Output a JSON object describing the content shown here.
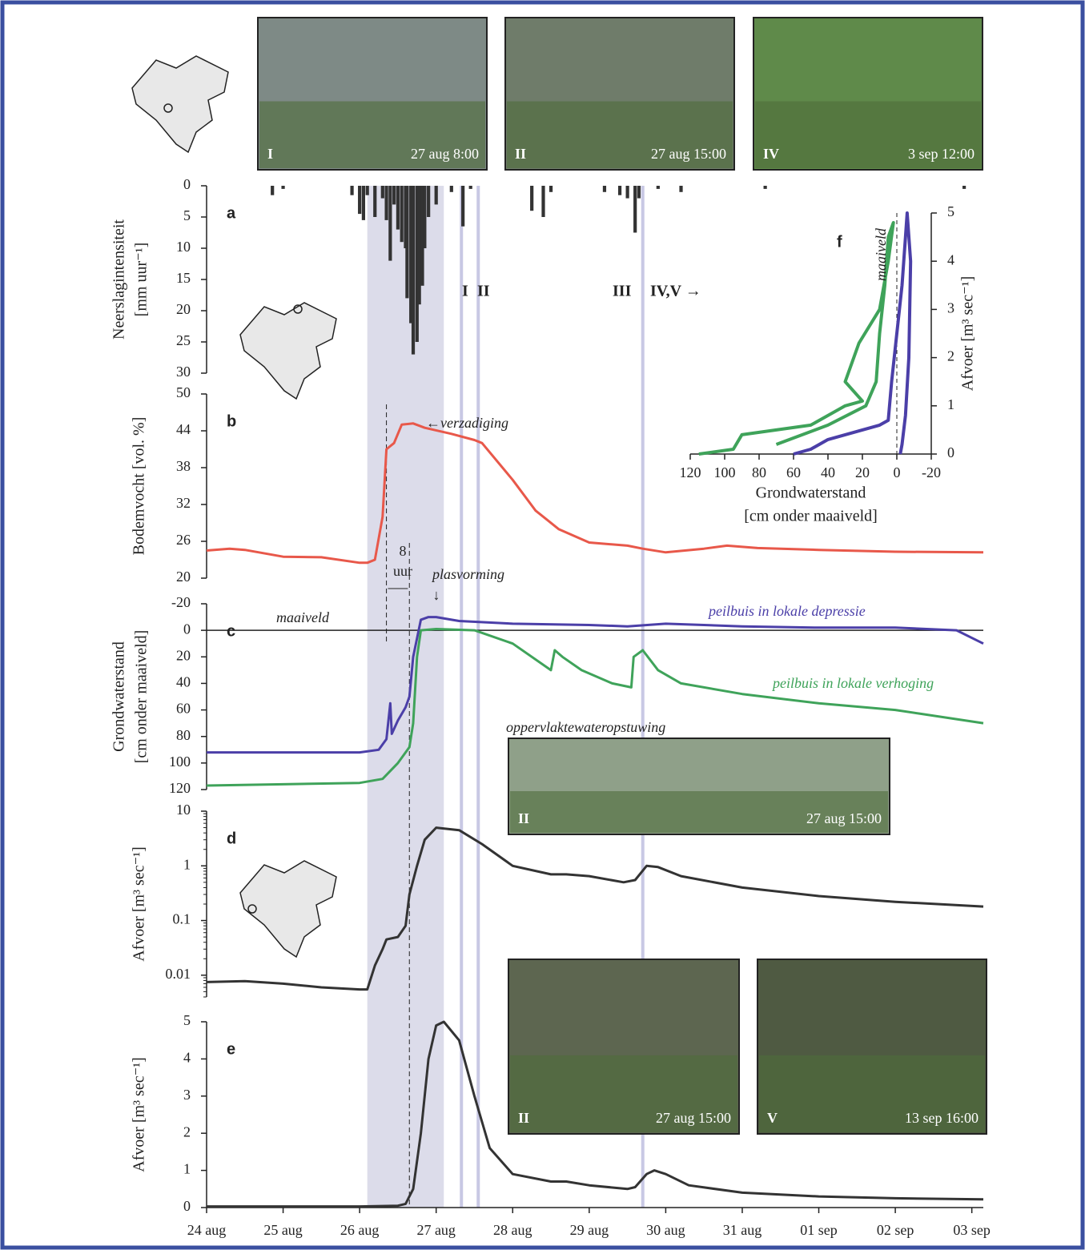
{
  "chart_data": [
    {
      "type": "bar",
      "label": "a",
      "y_label": "Neerslagintensiteit",
      "y_unit": "[mm uur⁻¹]",
      "color": "#333",
      "x": [
        0.86,
        1.0,
        1.9,
        2.0,
        2.05,
        2.1,
        2.2,
        2.3,
        2.35,
        2.4,
        2.45,
        2.5,
        2.55,
        2.6,
        2.62,
        2.67,
        2.7,
        2.75,
        2.78,
        2.82,
        2.85,
        2.9,
        3.0,
        3.2,
        3.35,
        3.45,
        4.25,
        4.4,
        4.5,
        5.2,
        5.4,
        5.5,
        5.6,
        5.65,
        5.9,
        6.2,
        7.3,
        9.9
      ],
      "values": [
        1.5,
        0.5,
        1.5,
        4.5,
        5.5,
        1.5,
        5,
        2,
        5.5,
        12,
        3,
        7,
        9,
        10,
        18,
        22,
        27,
        25,
        19,
        16,
        10,
        5,
        3,
        1,
        6.5,
        0.5,
        4,
        5,
        1,
        1,
        1.5,
        2,
        7.5,
        2,
        0.5,
        1,
        0.5,
        0.5
      ],
      "xlim": [
        0,
        10.15
      ],
      "ylim": [
        0,
        30
      ],
      "y_inverted": true,
      "yticks": [
        0,
        5,
        10,
        15,
        20,
        25,
        30
      ],
      "annotations": [
        "I",
        "II",
        "III",
        "IV,V →"
      ]
    },
    {
      "type": "line",
      "label": "b",
      "y_label": "Bodemvocht [vol. %]",
      "series": [
        {
          "color": "#e8584a",
          "x": [
            0,
            0.3,
            0.5,
            1,
            1.5,
            2,
            2.1,
            2.2,
            2.3,
            2.35,
            2.45,
            2.55,
            2.7,
            2.85,
            3.2,
            3.5,
            3.6,
            4,
            4.3,
            4.45,
            4.6,
            5,
            5.5,
            5.7,
            6,
            6.5,
            6.8,
            7.2,
            8,
            9,
            10.15
          ],
          "values": [
            24.5,
            24.8,
            24.6,
            23.5,
            23.4,
            22.5,
            22.5,
            23,
            30,
            41,
            42,
            45,
            45.2,
            44.5,
            43.5,
            42.5,
            42,
            36,
            31,
            29.5,
            28,
            25.8,
            25.3,
            24.8,
            24.2,
            24.8,
            25.3,
            24.9,
            24.6,
            24.3,
            24.2
          ]
        }
      ],
      "xlim": [
        0,
        10.15
      ],
      "ylim": [
        20,
        50
      ],
      "yticks": [
        20,
        26,
        32,
        38,
        44,
        50
      ],
      "annotations": [
        "←verzadiging"
      ]
    },
    {
      "type": "line",
      "label": "c",
      "y_label": "Grondwaterstand",
      "y_unit": "[cm onder maaiveld]",
      "series": [
        {
          "name": "peilbuis in lokale depressie",
          "color": "#4b3fa8",
          "x": [
            0,
            1,
            2,
            2.25,
            2.35,
            2.4,
            2.42,
            2.5,
            2.6,
            2.65,
            2.7,
            2.8,
            2.9,
            3.0,
            3.3,
            4,
            5,
            5.5,
            6,
            7,
            8,
            9,
            9.8,
            10.15
          ],
          "values": [
            92,
            92,
            92,
            90,
            82,
            55,
            78,
            68,
            58,
            50,
            20,
            -8,
            -10,
            -10,
            -7,
            -5,
            -4,
            -3,
            -5,
            -3,
            -2,
            -2,
            0,
            10
          ]
        },
        {
          "name": "peilbuis in lokale verhoging",
          "color": "#3fa35a",
          "x": [
            0,
            1,
            2,
            2.3,
            2.5,
            2.65,
            2.7,
            2.75,
            2.8,
            3.0,
            3.5,
            4,
            4.5,
            4.55,
            4.65,
            4.9,
            5.3,
            5.55,
            5.58,
            5.7,
            5.9,
            6.2,
            7,
            8,
            9,
            10.15
          ],
          "values": [
            117,
            116,
            115,
            112,
            100,
            88,
            70,
            20,
            0,
            -1,
            0,
            10,
            30,
            15,
            20,
            30,
            40,
            43,
            20,
            15,
            30,
            40,
            48,
            55,
            60,
            70
          ]
        }
      ],
      "xlim": [
        0,
        10.15
      ],
      "ylim": [
        -20,
        120
      ],
      "y_inverted": true,
      "yticks": [
        -20,
        0,
        20,
        40,
        60,
        80,
        100,
        120
      ],
      "annotations": [
        "maaiveld",
        "plasvorming",
        "↓",
        "8",
        "uur",
        "oppervlaktewateropstuwing"
      ]
    },
    {
      "type": "line",
      "label": "d",
      "y_label": "Afvoer [m³ sec⁻¹]",
      "log_scale": true,
      "series": [
        {
          "color": "#333",
          "x": [
            0,
            0.5,
            1,
            1.5,
            2,
            2.1,
            2.2,
            2.3,
            2.35,
            2.5,
            2.6,
            2.65,
            2.75,
            2.85,
            3.0,
            3.3,
            3.6,
            4,
            4.5,
            4.7,
            5,
            5.45,
            5.6,
            5.75,
            5.9,
            6.2,
            7,
            8,
            9,
            10.15
          ],
          "values": [
            0.0075,
            0.0078,
            0.007,
            0.006,
            0.0055,
            0.0055,
            0.015,
            0.03,
            0.045,
            0.05,
            0.08,
            0.3,
            1,
            3,
            5,
            4.5,
            2.5,
            1,
            0.7,
            0.7,
            0.65,
            0.5,
            0.55,
            1,
            0.95,
            0.65,
            0.4,
            0.28,
            0.22,
            0.18
          ]
        }
      ],
      "xlim": [
        0,
        10.15
      ],
      "ylim": [
        0.004,
        10
      ],
      "yticks": [
        0.01,
        0.1,
        1,
        10
      ]
    },
    {
      "type": "line",
      "label": "e",
      "y_label": "Afvoer [m³ sec⁻¹]",
      "series": [
        {
          "color": "#333",
          "x": [
            0,
            2,
            2.5,
            2.6,
            2.7,
            2.8,
            2.9,
            3.0,
            3.1,
            3.3,
            3.5,
            3.7,
            4.0,
            4.5,
            4.7,
            5,
            5.5,
            5.6,
            5.75,
            5.85,
            6,
            6.3,
            7,
            8,
            9,
            10.15
          ],
          "values": [
            0.03,
            0.03,
            0.05,
            0.1,
            0.5,
            2,
            4,
            4.9,
            5,
            4.5,
            3,
            1.6,
            0.9,
            0.7,
            0.7,
            0.6,
            0.5,
            0.55,
            0.9,
            1,
            0.9,
            0.6,
            0.4,
            0.3,
            0.25,
            0.22
          ]
        }
      ],
      "xlim": [
        0,
        10.15
      ],
      "ylim": [
        0,
        5
      ],
      "yticks": [
        0,
        1,
        2,
        3,
        4,
        5
      ],
      "xticks": [
        {
          "value": 0,
          "label": "24 aug"
        },
        {
          "value": 1,
          "label": "25 aug"
        },
        {
          "value": 2,
          "label": "26 aug"
        },
        {
          "value": 3,
          "label": "27 aug"
        },
        {
          "value": 4,
          "label": "28 aug"
        },
        {
          "value": 5,
          "label": "29 aug"
        },
        {
          "value": 6,
          "label": "30 aug"
        },
        {
          "value": 7,
          "label": "31 aug"
        },
        {
          "value": 8,
          "label": "01 sep"
        },
        {
          "value": 9,
          "label": "02 sep"
        },
        {
          "value": 10,
          "label": "03 sep"
        }
      ]
    },
    {
      "type": "line",
      "label": "f",
      "x_label": "Grondwaterstand",
      "x_unit": "[cm onder maaiveld]",
      "y_label": "Afvoer [m³ sec⁻¹]",
      "series": [
        {
          "color": "#3fa35a",
          "x": [
            115,
            95,
            90,
            50,
            30,
            20,
            30,
            22,
            10,
            5,
            2,
            5,
            7,
            10,
            12,
            18,
            40,
            70
          ],
          "values": [
            0,
            0.1,
            0.4,
            0.6,
            1.0,
            1.1,
            1.5,
            2.3,
            3,
            4,
            4.8,
            4.5,
            3.5,
            2.5,
            1.5,
            1,
            0.6,
            0.2
          ]
        },
        {
          "color": "#4b3fa8",
          "x": [
            60,
            50,
            40,
            20,
            10,
            5,
            3,
            0,
            -3,
            -5,
            -6,
            -8,
            -7,
            -5,
            -3,
            -2
          ],
          "values": [
            0,
            0.1,
            0.3,
            0.5,
            0.6,
            0.7,
            1.5,
            2.5,
            3.5,
            4.5,
            5,
            4,
            2,
            0.8,
            0.2,
            0
          ]
        }
      ],
      "xlim": [
        120,
        -20
      ],
      "ylim": [
        0,
        5
      ],
      "xticks": [
        120,
        100,
        80,
        60,
        40,
        20,
        0,
        -20
      ],
      "yticks": [
        0,
        1,
        2,
        3,
        4,
        5
      ],
      "annotations": [
        "maaiveld"
      ]
    }
  ],
  "photos": [
    {
      "label": "I",
      "caption": "27 aug 8:00"
    },
    {
      "label": "II",
      "caption": "27 aug 15:00"
    },
    {
      "label": "IV",
      "caption": "3 sep 12:00"
    },
    {
      "label": "II",
      "caption": "27 aug 15:00"
    },
    {
      "label": "II",
      "caption": "27 aug 15:00"
    },
    {
      "label": "V",
      "caption": "13 sep 16:00"
    }
  ]
}
